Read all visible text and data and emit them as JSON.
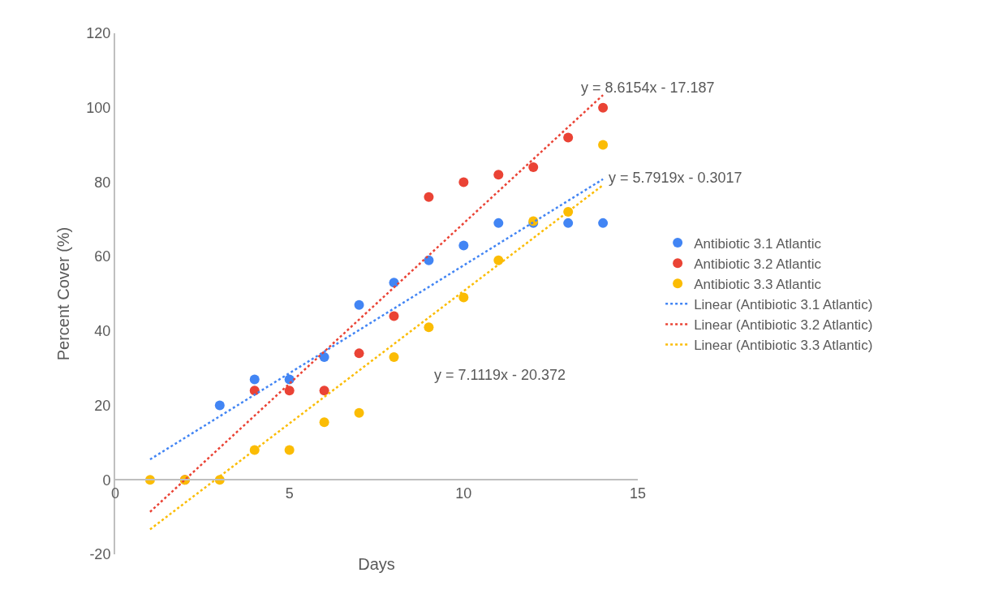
{
  "chart_data": {
    "type": "scatter",
    "xlabel": "Days",
    "ylabel": "Percent Cover (%)",
    "xlim": [
      0,
      15
    ],
    "xticks": [
      0,
      5,
      10,
      15
    ],
    "ylim": [
      -20,
      120
    ],
    "yticks": [
      -20,
      0,
      20,
      40,
      60,
      80,
      100,
      120
    ],
    "legend": "right",
    "marker": "circle",
    "series": [
      {
        "name": "Antibiotic 3.1 Atlantic",
        "color": "#4285f4",
        "x": [
          3,
          4,
          5,
          6,
          7,
          8,
          9,
          10,
          11,
          12,
          13,
          14
        ],
        "values": [
          20,
          27,
          27,
          33,
          47,
          53,
          59,
          63,
          69,
          69,
          69,
          69
        ]
      },
      {
        "name": "Antibiotic 3.2 Atlantic",
        "color": "#ea4335",
        "x": [
          2,
          4,
          5,
          6,
          7,
          8,
          9,
          10,
          11,
          12,
          13,
          14
        ],
        "values": [
          0,
          24,
          24,
          24,
          34,
          44,
          76,
          80,
          82,
          84,
          92,
          100
        ]
      },
      {
        "name": "Antibiotic 3.3 Atlantic",
        "color": "#fbbc04",
        "x": [
          1,
          2,
          3,
          4,
          5,
          6,
          7,
          8,
          9,
          10,
          11,
          12,
          13,
          14
        ],
        "values": [
          0,
          0,
          0,
          8,
          8,
          15.5,
          18,
          33,
          41,
          49,
          59,
          69.5,
          72,
          90
        ]
      },
      {
        "name": "Linear (Antibiotic 3.1 Atlantic)",
        "type": "line",
        "line_style": "dotted",
        "marker": "none",
        "color": "#4285f4",
        "x": [
          1,
          14
        ],
        "values": [
          5.5,
          80.8
        ]
      },
      {
        "name": "Linear (Antibiotic 3.2 Atlantic)",
        "type": "line",
        "line_style": "dotted",
        "marker": "none",
        "color": "#ea4335",
        "x": [
          1,
          14
        ],
        "values": [
          -8.6,
          103.4
        ]
      },
      {
        "name": "Linear (Antibiotic 3.3 Atlantic)",
        "type": "line",
        "line_style": "dotted",
        "marker": "none",
        "color": "#fbbc04",
        "x": [
          1,
          14
        ],
        "values": [
          -13.3,
          79.2
        ]
      }
    ],
    "annotations": [
      "y = 8.6154x - 17.187",
      "y = 5.7919x - 0.3017",
      "y = 7.1119x - 20.372"
    ]
  }
}
